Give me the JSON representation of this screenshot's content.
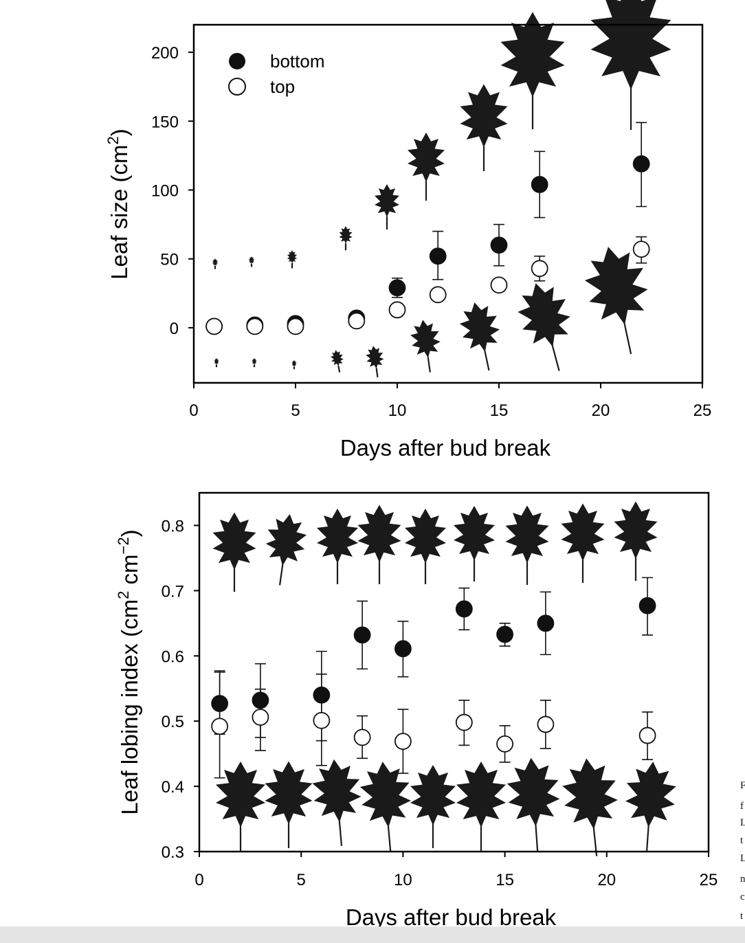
{
  "chart_data": [
    {
      "type": "scatter",
      "title": "",
      "xlabel": "Days after bud break",
      "ylabel": "Leaf size (cm",
      "ylabel_sup": "2",
      "ylabel_end": ")",
      "xlim": [
        0,
        25
      ],
      "ylim": [
        -40,
        220
      ],
      "xticks": [
        0,
        5,
        10,
        15,
        20,
        25
      ],
      "yticks": [
        0,
        50,
        100,
        150,
        200
      ],
      "legend": {
        "placement": "top-left",
        "entries": [
          "bottom",
          "top"
        ]
      },
      "grid": false,
      "series": [
        {
          "name": "bottom",
          "marker": "filled-circle",
          "x": [
            1,
            3,
            5,
            8,
            10,
            12,
            15,
            17,
            22
          ],
          "y": [
            1,
            2,
            3,
            7,
            29,
            52,
            60,
            104,
            119
          ],
          "err_low": [
            0,
            0,
            0,
            0,
            22,
            35,
            45,
            80,
            88
          ],
          "err_high": [
            0,
            0,
            0,
            0,
            36,
            70,
            75,
            128,
            149
          ]
        },
        {
          "name": "top",
          "marker": "open-circle",
          "x": [
            1,
            3,
            5,
            8,
            10,
            12,
            15,
            17,
            22
          ],
          "y": [
            1,
            1,
            1,
            5,
            13,
            24,
            31,
            43,
            57
          ],
          "err_low": [
            0,
            0,
            0,
            0,
            0,
            0,
            0,
            34,
            47
          ],
          "err_high": [
            0,
            0,
            0,
            0,
            0,
            0,
            0,
            52,
            66
          ]
        }
      ]
    },
    {
      "type": "scatter",
      "title": "",
      "xlabel": "Days after bud break",
      "ylabel": "Leaf lobing index (cm",
      "ylabel_sup1": "2",
      "ylabel_mid": " cm",
      "ylabel_sup2": "−2",
      "ylabel_end": ")",
      "xlim": [
        0,
        25
      ],
      "ylim": [
        0.3,
        0.85
      ],
      "xticks": [
        0,
        5,
        10,
        15,
        20,
        25
      ],
      "yticks": [
        0.3,
        0.4,
        0.5,
        0.6,
        0.7,
        0.8
      ],
      "ytick_labels": [
        "0.3",
        "0.4",
        "0.5",
        "0.6",
        "0.7",
        "0.8"
      ],
      "grid": false,
      "series": [
        {
          "name": "bottom",
          "marker": "filled-circle",
          "x": [
            1,
            3,
            6,
            8,
            10,
            13,
            15,
            17,
            22
          ],
          "y": [
            0.527,
            0.532,
            0.54,
            0.632,
            0.611,
            0.672,
            0.633,
            0.65,
            0.677
          ],
          "err_low": [
            0.48,
            0.475,
            0.47,
            0.58,
            0.568,
            0.64,
            0.615,
            0.602,
            0.632
          ],
          "err_high": [
            0.575,
            0.588,
            0.607,
            0.684,
            0.653,
            0.704,
            0.65,
            0.698,
            0.72
          ]
        },
        {
          "name": "top",
          "marker": "open-circle",
          "x": [
            1,
            3,
            6,
            8,
            10,
            13,
            15,
            17,
            22
          ],
          "y": [
            0.492,
            0.506,
            0.501,
            0.475,
            0.469,
            0.498,
            0.465,
            0.495,
            0.478
          ],
          "err_low": [
            0.413,
            0.455,
            0.432,
            0.443,
            0.42,
            0.463,
            0.437,
            0.458,
            0.441
          ],
          "err_high": [
            0.577,
            0.549,
            0.572,
            0.508,
            0.518,
            0.532,
            0.493,
            0.532,
            0.514
          ]
        }
      ]
    }
  ],
  "leaf_color": "#1a1a1a",
  "marker_color": "#111111",
  "caption_fragment": [
    "F",
    "f",
    "L",
    "t",
    "L",
    "n",
    "c",
    "t"
  ]
}
